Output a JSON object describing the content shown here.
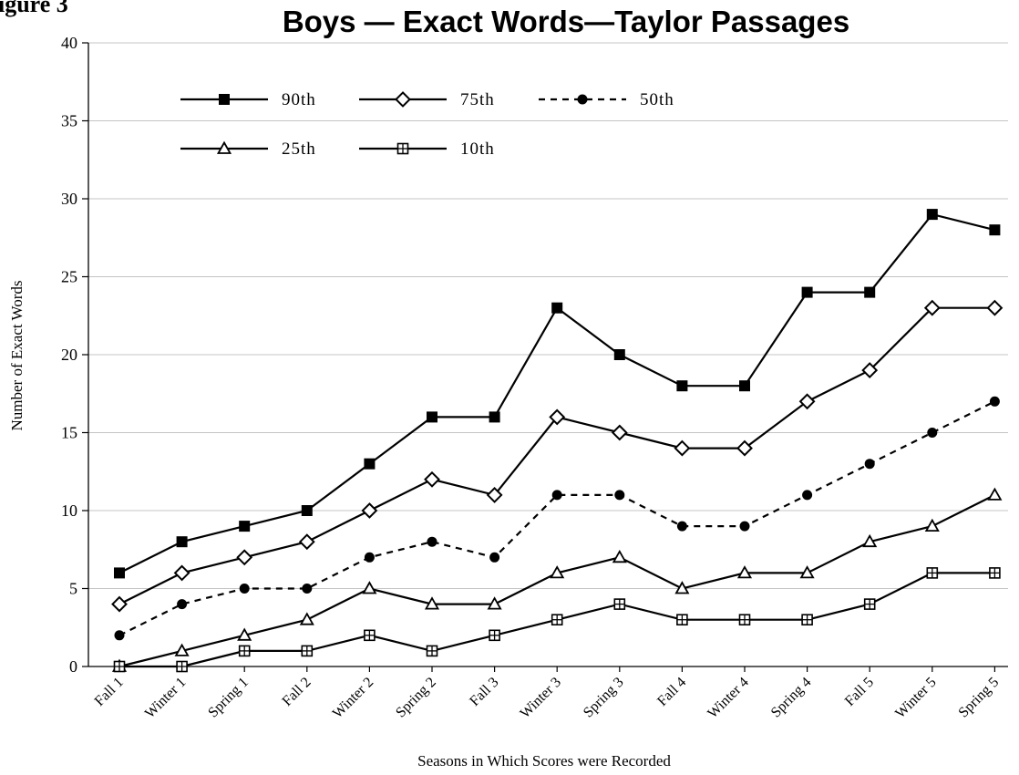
{
  "figure_label": "igure 3",
  "chart_data": {
    "type": "line",
    "title": "Boys — Exact Words—Taylor Passages",
    "xlabel": "Seasons in Which Scores were Recorded",
    "ylabel": "Number of Exact Words",
    "ylim": [
      0,
      40
    ],
    "yticks": [
      "0",
      "5",
      "10",
      "15",
      "20",
      "25",
      "30",
      "35",
      "40"
    ],
    "grid": "horizontal",
    "legend_position": "top-left",
    "categories": [
      "Fall 1",
      "Winter 1",
      "Spring 1",
      "Fall 2",
      "Winter 2",
      "Spring 2",
      "Fall 3",
      "Winter 3",
      "Spring 3",
      "Fall 4",
      "Winter 4",
      "Spring 4",
      "Fall 5",
      "Winter 5",
      "Spring 5"
    ],
    "series": [
      {
        "name": "90th",
        "marker": "filled-square",
        "dash": "solid",
        "values": [
          6,
          8,
          9,
          10,
          13,
          16,
          16,
          23,
          20,
          18,
          18,
          24,
          24,
          29,
          28
        ]
      },
      {
        "name": "75th",
        "marker": "open-diamond",
        "dash": "solid",
        "values": [
          4,
          6,
          7,
          8,
          10,
          12,
          11,
          16,
          15,
          14,
          14,
          17,
          19,
          23,
          23
        ]
      },
      {
        "name": "50th",
        "marker": "filled-circle",
        "dash": "dashed",
        "values": [
          2,
          4,
          5,
          5,
          7,
          8,
          7,
          11,
          11,
          9,
          9,
          11,
          13,
          15,
          17
        ]
      },
      {
        "name": "25th",
        "marker": "open-triangle",
        "dash": "solid",
        "values": [
          0,
          1,
          2,
          3,
          5,
          4,
          4,
          6,
          7,
          5,
          6,
          6,
          8,
          9,
          11
        ]
      },
      {
        "name": "10th",
        "marker": "crossed-square",
        "dash": "solid",
        "values": [
          0,
          0,
          1,
          1,
          2,
          1,
          2,
          3,
          4,
          3,
          3,
          3,
          4,
          6,
          6
        ]
      }
    ]
  }
}
